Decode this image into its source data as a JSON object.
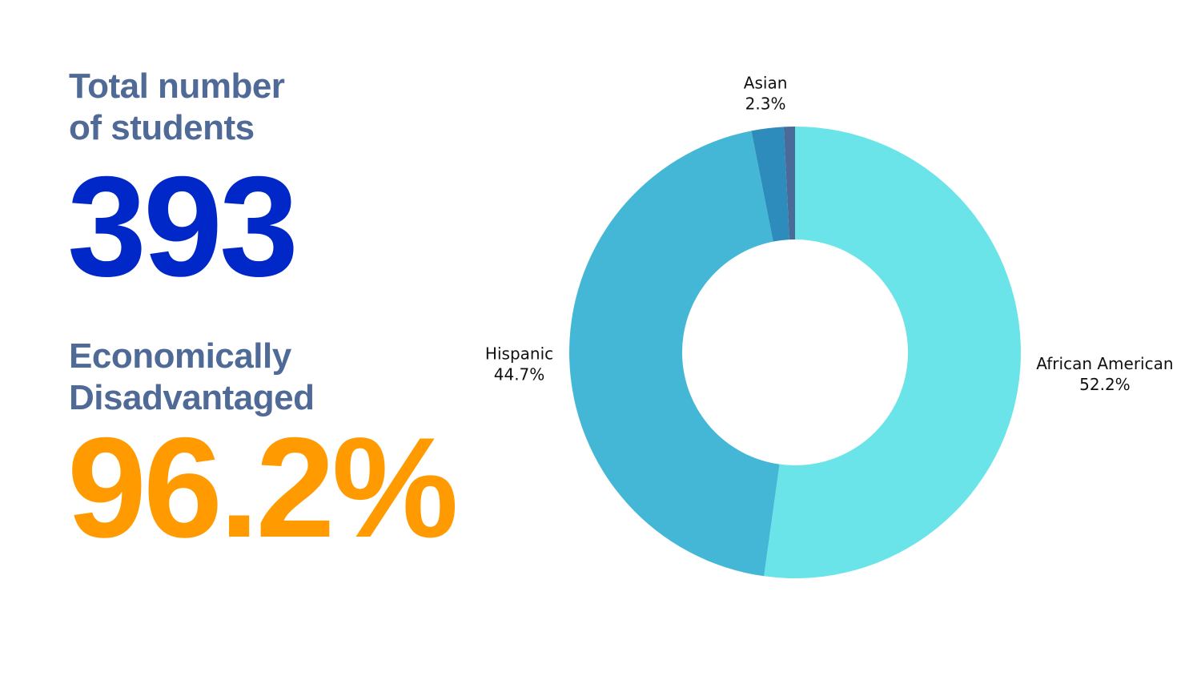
{
  "stats": [
    {
      "title_lines": [
        "Total number",
        "of students"
      ],
      "value": "393"
    },
    {
      "title_lines": [
        "Economically",
        "Disadvantaged"
      ],
      "value": "96.2%"
    }
  ],
  "chart_data": {
    "type": "donut",
    "categories": [
      "African American",
      "Hispanic",
      "Asian",
      null
    ],
    "values": [
      52.2,
      44.7,
      2.3,
      0.8
    ],
    "value_labels": [
      "52.2%",
      "44.7%",
      "2.3%",
      null
    ],
    "colors": [
      "#6be4e9",
      "#44b7d6",
      "#2e8cbd",
      "#4a6a9a"
    ]
  }
}
